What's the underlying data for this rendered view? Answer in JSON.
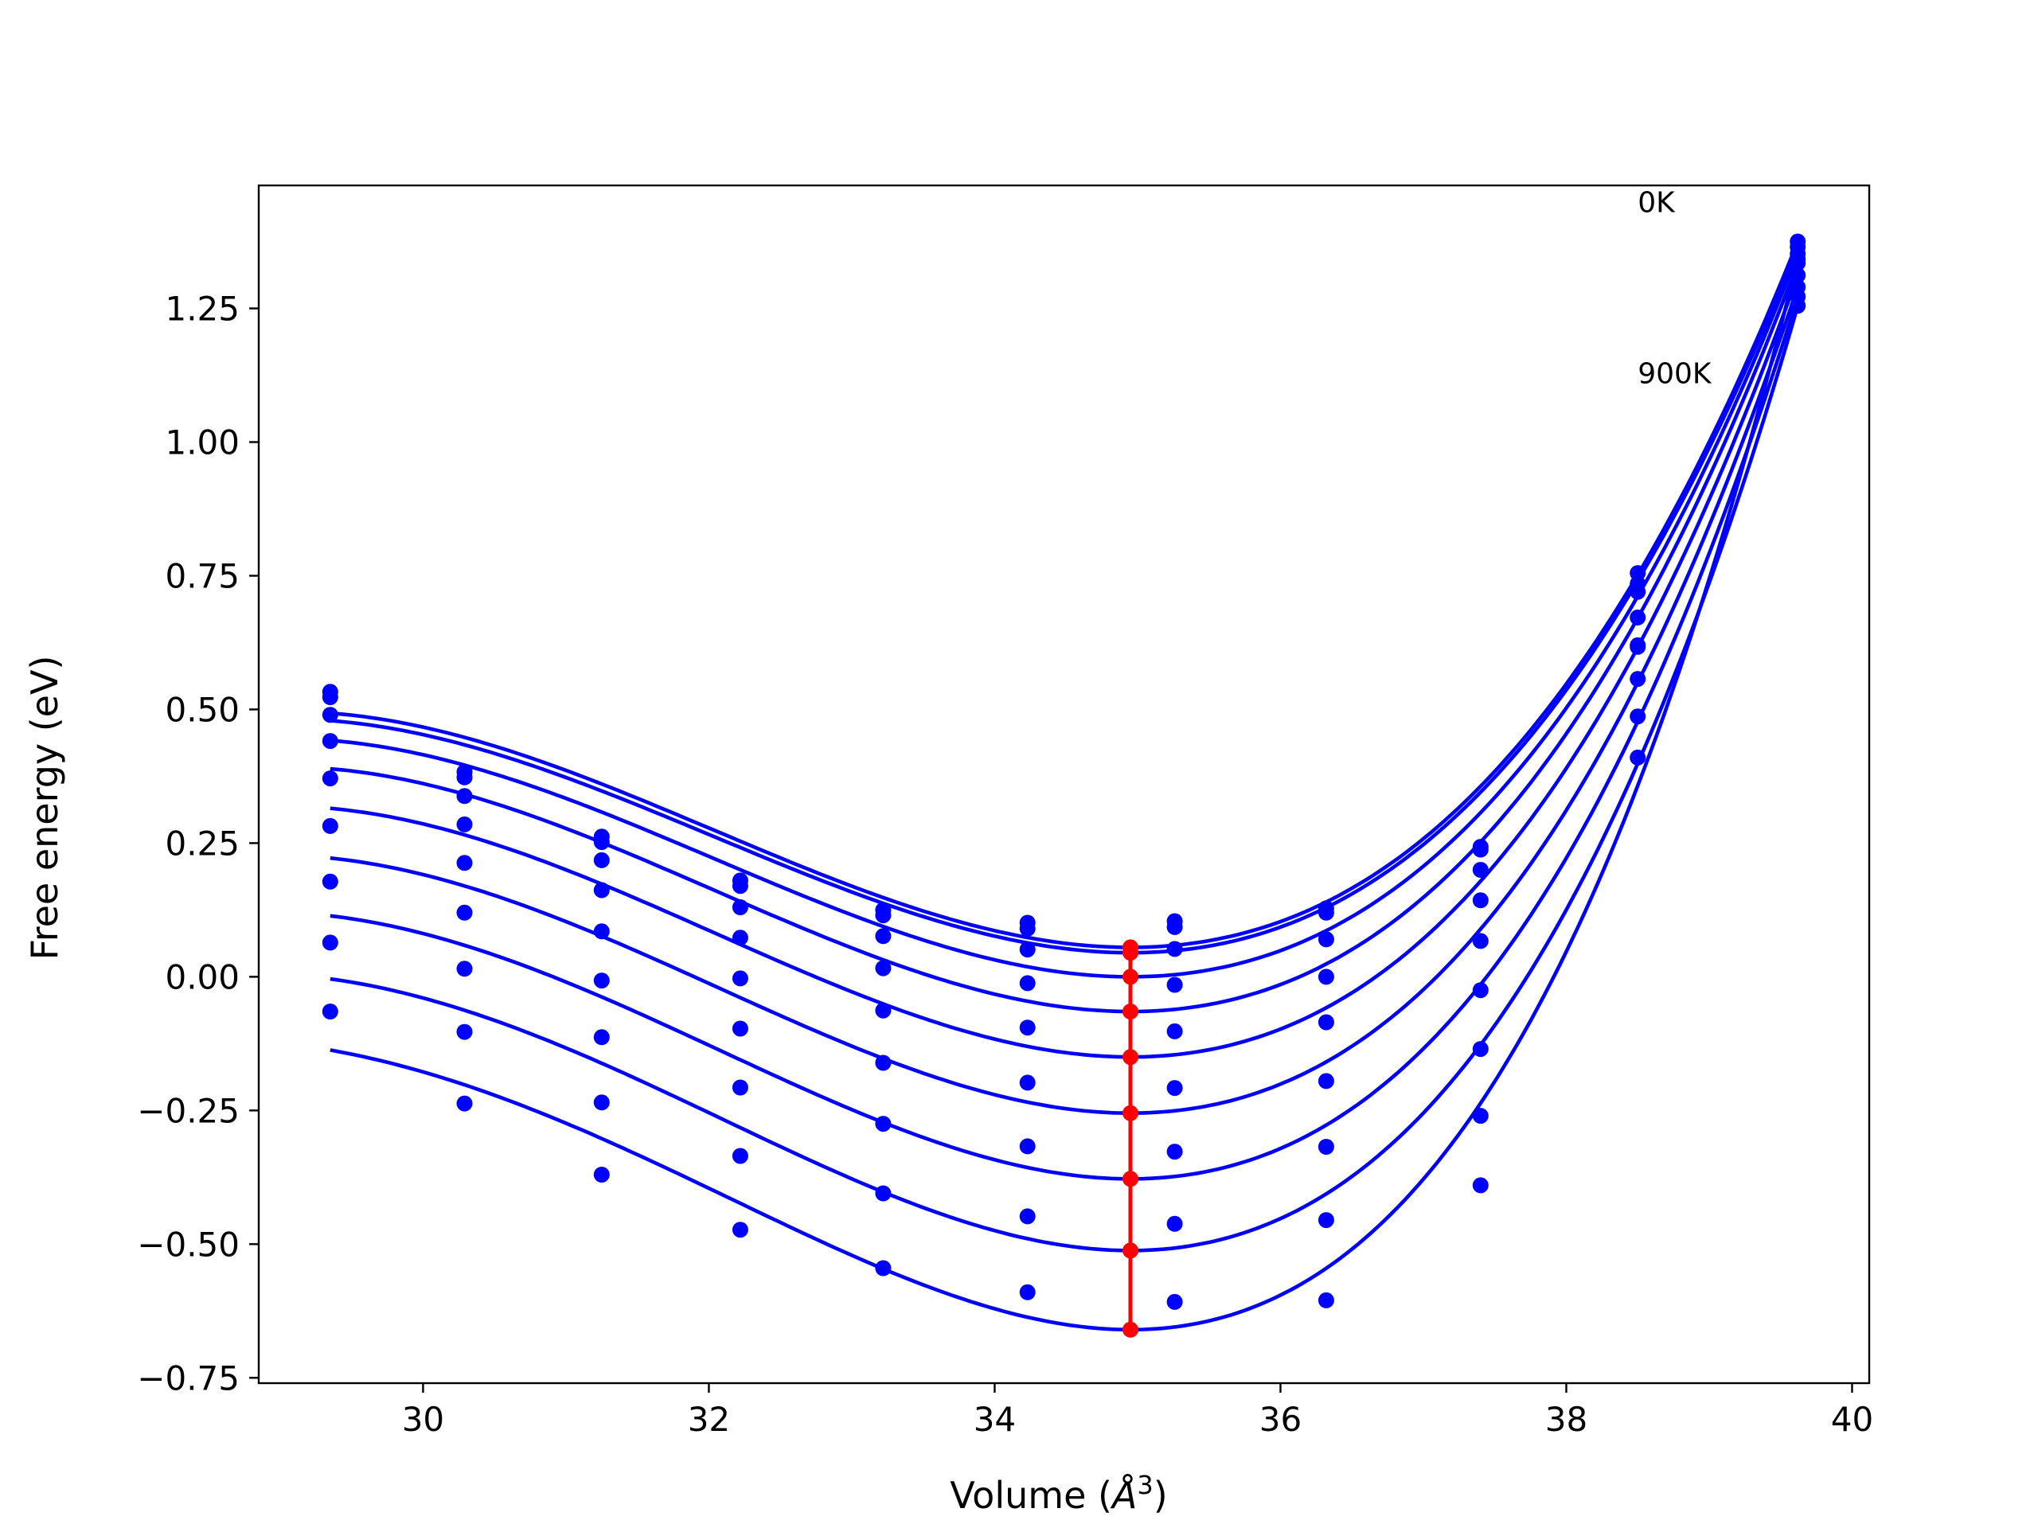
{
  "chart_data": {
    "type": "line",
    "title": "",
    "xlabel": "Volume (",
    "xlabel_unit": "Å",
    "xlabel_exp": "3",
    "xlabel_close": ")",
    "ylabel": "Free energy (eV)",
    "xlim": [
      28.85,
      40.12
    ],
    "ylim": [
      -0.76,
      1.48
    ],
    "xticks": [
      30,
      32,
      34,
      36,
      38,
      40
    ],
    "xtick_labels": [
      "30",
      "32",
      "34",
      "36",
      "38",
      "40"
    ],
    "yticks": [
      -0.75,
      -0.5,
      -0.25,
      0.0,
      0.25,
      0.5,
      0.75,
      1.0,
      1.25
    ],
    "ytick_labels": [
      "−0.75",
      "−0.50",
      "−0.25",
      "0.00",
      "0.25",
      "0.50",
      "0.75",
      "1.00",
      "1.25"
    ],
    "grid": false,
    "annotations": [
      {
        "text": "0K",
        "x": 38.5,
        "y": 1.43
      },
      {
        "text": "900K",
        "x": 38.5,
        "y": 1.11
      }
    ],
    "colors": {
      "curves": "#0000ff",
      "equilibrium": "#ff0000",
      "axes": "#000000"
    },
    "volumes": [
      29.35,
      30.29,
      31.25,
      32.22,
      33.22,
      34.23,
      35.26,
      36.32,
      37.4,
      38.5,
      39.62
    ],
    "fit_range": [
      29.35,
      39.62
    ],
    "curves": [
      {
        "min_volume": 34.95,
        "min_energy": 0.055,
        "points": [
          0.533,
          0.383,
          0.262,
          0.18,
          0.125,
          0.101,
          0.104,
          0.128,
          0.243,
          0.755,
          1.375
        ]
      },
      {
        "min_volume": 34.95,
        "min_energy": 0.045,
        "points": [
          0.523,
          0.373,
          0.252,
          0.17,
          0.115,
          0.09,
          0.093,
          0.12,
          0.238,
          0.735,
          1.365
        ]
      },
      {
        "min_volume": 34.95,
        "min_energy": 0.0,
        "points": [
          0.49,
          0.338,
          0.218,
          0.13,
          0.076,
          0.051,
          0.052,
          0.07,
          0.2,
          0.72,
          1.352
        ]
      },
      {
        "min_volume": 34.95,
        "min_energy": -0.065,
        "points": [
          0.441,
          0.285,
          0.162,
          0.073,
          0.016,
          -0.012,
          -0.015,
          0.0,
          0.143,
          0.672,
          1.335
        ]
      },
      {
        "min_volume": 34.95,
        "min_energy": -0.15,
        "points": [
          0.371,
          0.213,
          0.085,
          -0.003,
          -0.063,
          -0.095,
          -0.102,
          -0.085,
          0.067,
          0.617,
          1.312
        ]
      },
      {
        "min_volume": 34.95,
        "min_energy": -0.255,
        "points": [
          0.282,
          0.12,
          -0.007,
          -0.097,
          -0.161,
          -0.198,
          -0.208,
          -0.195,
          -0.025,
          0.557,
          1.29
        ]
      },
      {
        "min_volume": 34.95,
        "min_energy": -0.378,
        "points": [
          0.178,
          0.015,
          -0.113,
          -0.207,
          -0.275,
          -0.317,
          -0.327,
          -0.318,
          -0.135,
          0.487,
          1.272
        ]
      },
      {
        "min_volume": 34.95,
        "min_energy": -0.512,
        "points": [
          0.064,
          -0.103,
          -0.235,
          -0.335,
          -0.405,
          -0.448,
          -0.462,
          -0.455,
          -0.26,
          0.41,
          1.255
        ]
      },
      {
        "min_volume": 34.95,
        "min_energy": -0.66,
        "points": [
          -0.065,
          -0.237,
          -0.37,
          -0.473,
          -0.545,
          -0.59,
          -0.608,
          -0.605,
          -0.39,
          0.62,
          1.342
        ]
      }
    ],
    "equilibrium_line": {
      "volume": 34.95,
      "energies": [
        0.055,
        0.045,
        0.0,
        -0.065,
        -0.15,
        -0.255,
        -0.378,
        -0.512,
        -0.66
      ]
    }
  }
}
